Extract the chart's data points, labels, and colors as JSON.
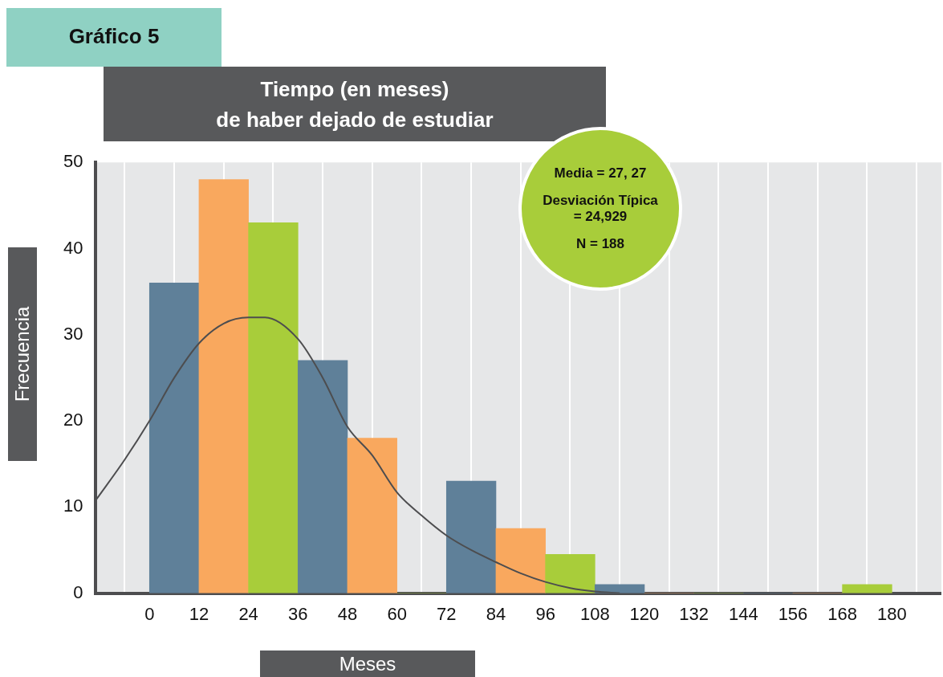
{
  "chart_data": {
    "type": "histogram",
    "title": "Tiempo (en meses)\nde haber dejado de estudiar",
    "subtitle": "Gráfico 5",
    "xlabel": "Meses",
    "ylabel": "Frecuencia",
    "bins": [
      0,
      12,
      24,
      36,
      48,
      60,
      72,
      84,
      96,
      108,
      120,
      132,
      144,
      156,
      168,
      180
    ],
    "values": [
      36,
      48,
      43,
      27,
      18,
      0,
      13,
      7.5,
      4.5,
      1,
      0,
      0,
      0,
      0,
      1
    ],
    "colors": [
      "#5f8099",
      "#f9a85e",
      "#a8cd3a",
      "#5f8099",
      "#f9a85e",
      "#a8cd3a",
      "#5f8099",
      "#f9a85e",
      "#a8cd3a",
      "#5f8099",
      "#f9a85e",
      "#a8cd3a",
      "#5f8099",
      "#f9a85e",
      "#a8cd3a"
    ],
    "series": [
      {
        "type": "line",
        "color": "#4d4d4f",
        "x": [
          -13,
          -6,
          0,
          6,
          12,
          18,
          24,
          28,
          36,
          42,
          48,
          54,
          60,
          66,
          72,
          78,
          84,
          90,
          96,
          102,
          108,
          114
        ],
        "values": [
          10.8,
          15.5,
          20,
          25,
          29,
          31.3,
          32,
          32,
          29.5,
          25,
          19.3,
          16,
          11.7,
          9,
          6.7,
          5,
          3.6,
          2.3,
          1.3,
          0.6,
          0.2,
          0
        ]
      }
    ],
    "xlim": [
      -13,
      192
    ],
    "xticks": [
      0,
      12,
      24,
      36,
      48,
      60,
      72,
      84,
      96,
      108,
      120,
      132,
      144,
      156,
      168,
      180
    ],
    "ylim": [
      0,
      50
    ],
    "yticks": [
      0,
      10,
      20,
      30,
      40,
      50
    ],
    "grid": "x",
    "legend": false,
    "annotations": [
      "Media = 27, 27",
      "Desviación Típica = 24,929",
      "N = 188"
    ]
  }
}
